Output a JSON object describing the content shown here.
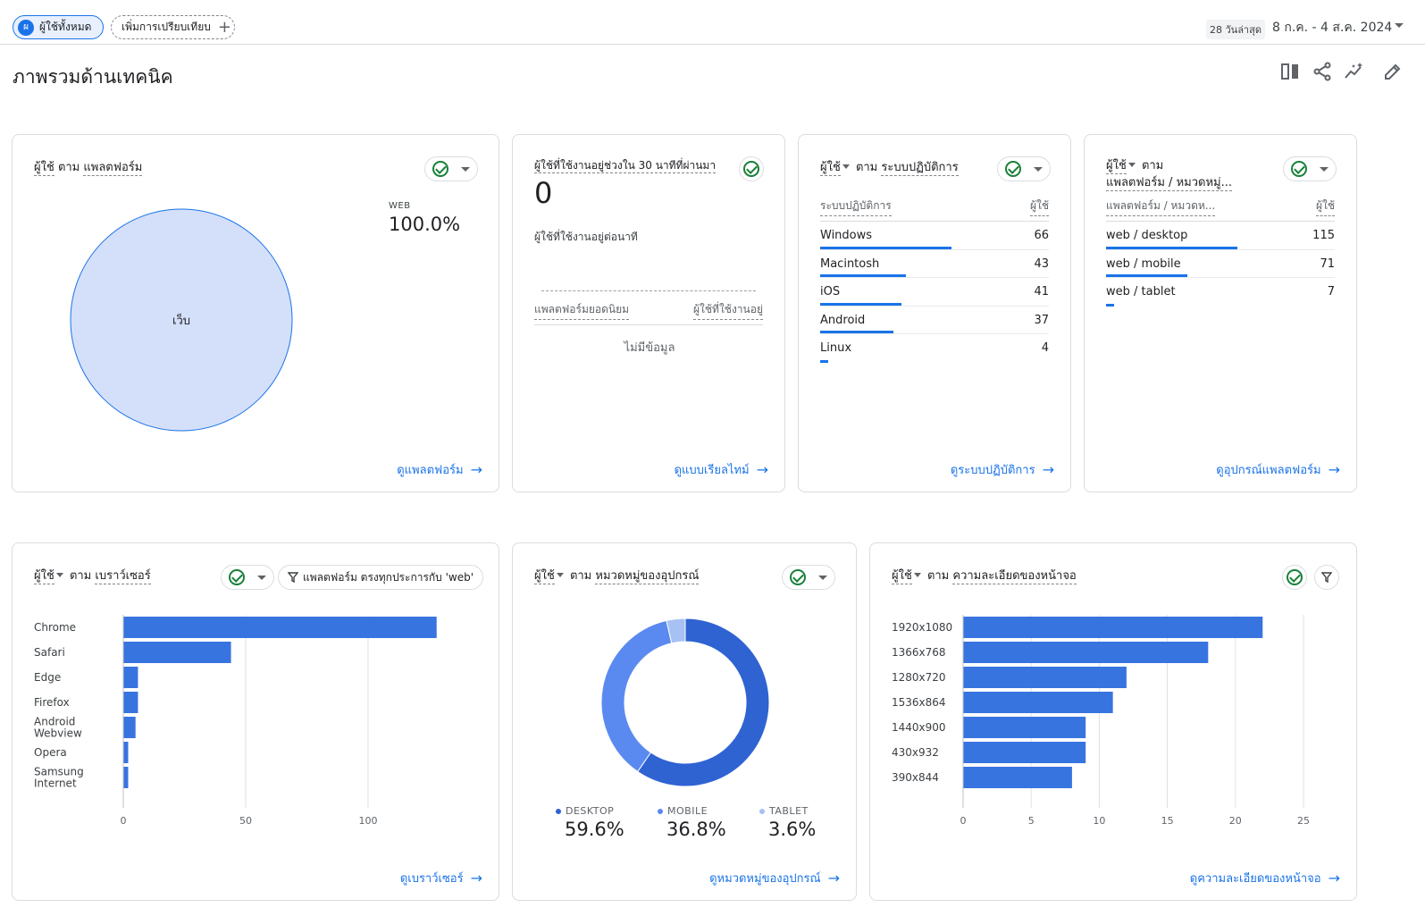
{
  "header": {
    "segment_chip": {
      "avatar": "ผ",
      "label": "ผู้ใช้ทั้งหมด"
    },
    "compare_chip": {
      "label": "เพิ่มการเปรียบเทียบ",
      "icon": "plus-icon"
    },
    "date_badge": "28 วันล่าสุด",
    "date_range": "8 ก.ค. - 4 ส.ค. 2024",
    "page_title": "ภาพรวมด้านเทคนิค",
    "toolbar_icons": [
      "compare-columns-icon",
      "share-icon",
      "insights-icon",
      "edit-icon"
    ]
  },
  "cards": {
    "platform": {
      "title_metric": "ผู้ใช้",
      "title_by": "ตาม",
      "title_dim": "แพลตฟอร์ม",
      "slice_label": "เว็บ",
      "legend_name": "WEB",
      "legend_value": "100.0%",
      "link": "ดูแพลตฟอร์ม"
    },
    "realtime": {
      "title": "ผู้ใช้ที่ใช้งานอยู่ช่วงใน 30 นาทีที่ผ่านมา",
      "value": "0",
      "per_minute": "ผู้ใช้ที่ใช้งานอยู่ต่อนาที",
      "col_left": "แพลตฟอร์มยอดนิยม",
      "col_right": "ผู้ใช้ที่ใช้งานอยู่",
      "empty": "ไม่มีข้อมูล",
      "link": "ดูแบบเรียลไทม์"
    },
    "os": {
      "title_metric": "ผู้ใช้",
      "title_by": "ตาม",
      "title_dim": "ระบบปฏิบัติการ",
      "col_left": "ระบบปฏิบัติการ",
      "col_right": "ผู้ใช้",
      "rows": [
        {
          "label": "Windows",
          "value": 66
        },
        {
          "label": "Macintosh",
          "value": 43
        },
        {
          "label": "iOS",
          "value": 41
        },
        {
          "label": "Android",
          "value": 37
        },
        {
          "label": "Linux",
          "value": 4
        }
      ],
      "link": "ดูระบบปฏิบัติการ"
    },
    "device_platform": {
      "title_metric": "ผู้ใช้",
      "title_by": "ตาม",
      "title_dim": "แพลตฟอร์ม / หมวดหมู่...",
      "col_left": "แพลตฟอร์ม / หมวดห...",
      "col_right": "ผู้ใช้",
      "rows": [
        {
          "label": "web / desktop",
          "value": 115
        },
        {
          "label": "web / mobile",
          "value": 71
        },
        {
          "label": "web / tablet",
          "value": 7
        }
      ],
      "link": "ดูอุปกรณ์แพลตฟอร์ม"
    },
    "browser": {
      "title_metric": "ผู้ใช้",
      "title_by": "ตาม",
      "title_dim": "เบราว์เซอร์",
      "filter": "แพลตฟอร์ม ตรงทุกประการกับ 'web'",
      "link": "ดูเบราว์เซอร์"
    },
    "device": {
      "title_metric": "ผู้ใช้",
      "title_by": "ตาม",
      "title_dim": "หมวดหมู่ของอุปกรณ์",
      "link": "ดูหมวดหมู่ของอุปกรณ์"
    },
    "screen": {
      "title_metric": "ผู้ใช้",
      "title_by": "ตาม",
      "title_dim": "ความละเอียดของหน้าจอ",
      "link": "ดูความละเอียดของหน้าจอ"
    }
  },
  "colors": {
    "accent": "#1a73e8",
    "bar": "#3874e0",
    "pie": "#d4e0fa",
    "donut_desktop": "#2f63d2",
    "donut_mobile": "#5a8af0",
    "donut_tablet": "#a7c1f5"
  },
  "chart_data": [
    {
      "type": "pie",
      "categories": [
        "เว็บ"
      ],
      "values": [
        100.0
      ]
    },
    {
      "type": "bar",
      "orientation": "horizontal",
      "categories": [
        "Chrome",
        "Safari",
        "Edge",
        "Firefox",
        "Android Webview",
        "Opera",
        "Samsung Internet"
      ],
      "values": [
        128,
        44,
        6,
        6,
        5,
        2,
        2
      ],
      "xlim": [
        0,
        150
      ],
      "xticks": [
        0,
        50,
        100
      ],
      "grid": true
    },
    {
      "type": "pie",
      "variant": "donut",
      "categories": [
        "DESKTOP",
        "MOBILE",
        "TABLET"
      ],
      "values": [
        59.6,
        36.8,
        3.6
      ],
      "value_labels": [
        "59.6%",
        "36.8%",
        "3.6%"
      ],
      "legend": "bottom"
    },
    {
      "type": "bar",
      "orientation": "horizontal",
      "categories": [
        "1920x1080",
        "1366x768",
        "1280x720",
        "1536x864",
        "1440x900",
        "430x932",
        "390x844"
      ],
      "values": [
        22,
        18,
        12,
        11,
        9,
        9,
        8
      ],
      "xlim": [
        0,
        25
      ],
      "xticks": [
        0,
        5,
        10,
        15,
        20,
        25
      ],
      "grid": true
    }
  ]
}
